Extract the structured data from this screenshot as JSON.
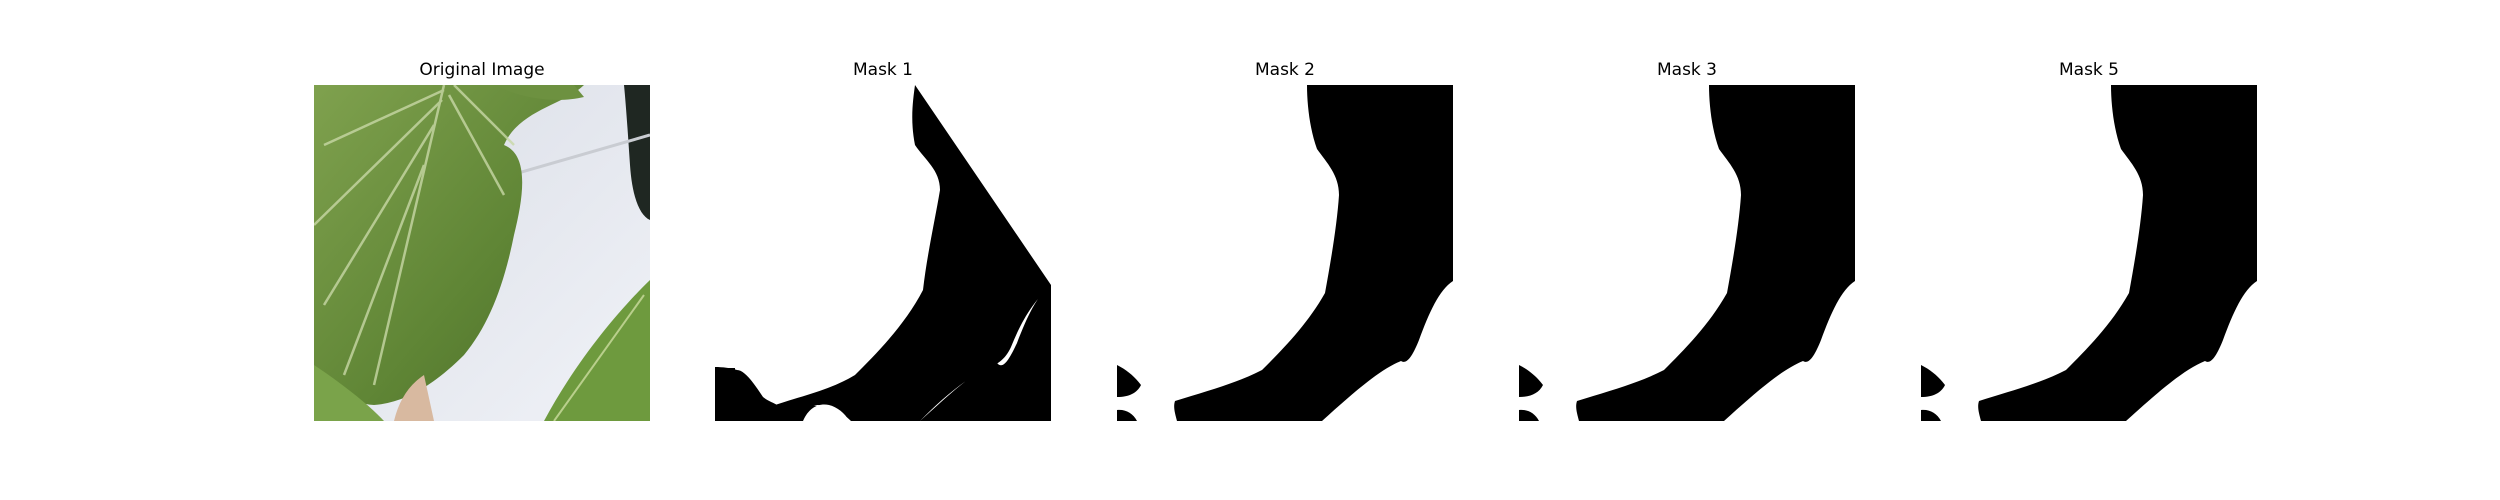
{
  "panels": [
    {
      "title": "Original Image"
    },
    {
      "title": "Mask 1"
    },
    {
      "title": "Mask 2"
    },
    {
      "title": "Mask 3"
    },
    {
      "title": "Mask 5"
    }
  ],
  "colors": {
    "mask_foreground": "#ffffff",
    "mask_background": "#000000",
    "leaf_green": "#6f9440",
    "background_white": "#e8ecf2"
  }
}
